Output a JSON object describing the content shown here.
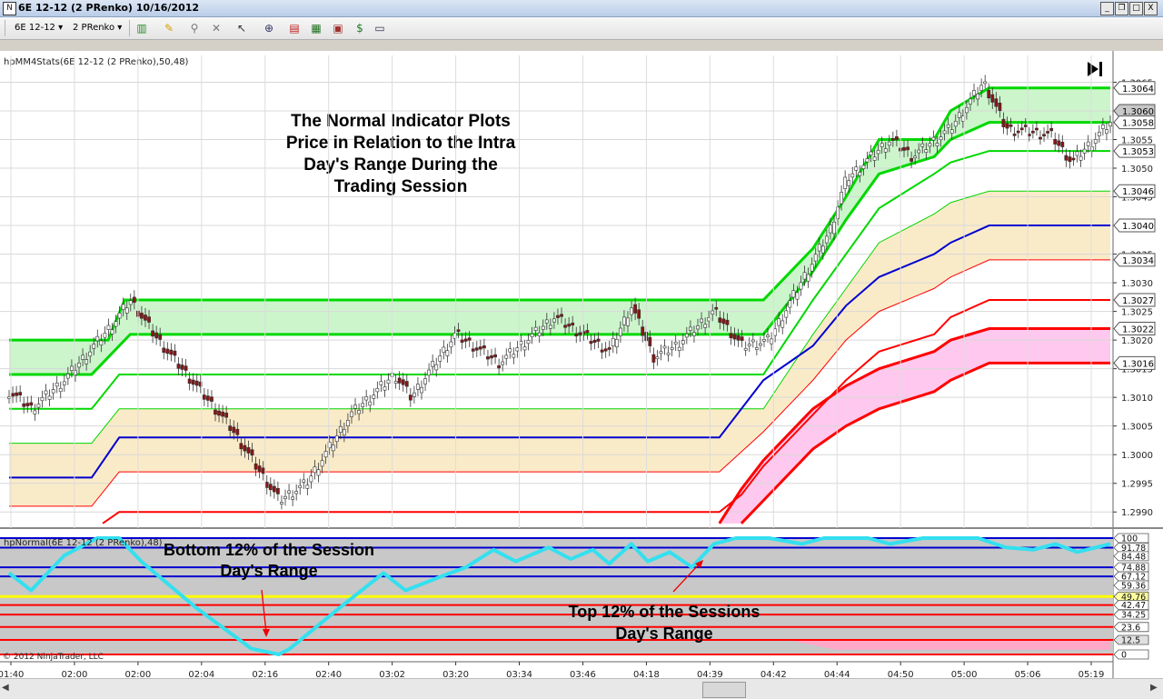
{
  "window": {
    "title": "6E 12-12 (2 PRenko)  10/16/2012",
    "min_label": "_",
    "restore_label": "❐",
    "max_label": "□",
    "close_label": "X"
  },
  "toolbar": {
    "instrument": "6E 12-12",
    "period": "2 PRenko",
    "icons": [
      "candlestick-icon",
      "pencil-icon",
      "pin-icon",
      "crosshair-icon",
      "pointer-icon",
      "zoom-icon",
      "chart-style-icon",
      "bars-icon",
      "panels-icon",
      "dollar-icon",
      "properties-icon"
    ]
  },
  "price_panel": {
    "indicator_label": "hpMM4Stats(6E 12-12 (2 PRenko),50,48)",
    "annotation_lines": [
      "The Normal Indicator Plots",
      "Price in Relation to the Intra",
      "Day's Range During the",
      "Trading Session"
    ],
    "nav_icon": "go-to-end-icon"
  },
  "normal_panel": {
    "indicator_label": "hpNormal(6E 12-12 (2 PRenko),48)",
    "annotation_bottom": [
      "Bottom 12% of the Session",
      "Day's Range"
    ],
    "annotation_top": [
      "Top 12% of the Sessions",
      "Day's Range"
    ],
    "copyright": "© 2012 NinjaTrader, LLC"
  },
  "colors": {
    "green": "#00d800",
    "blue": "#0000d0",
    "red": "#ff0000",
    "cyan": "#33e0f0",
    "yellow": "#ffff00",
    "green_fill": "#ccf5cc",
    "tan_fill": "#faebc8",
    "pink_fill": "#ffc8ee",
    "gray_fill": "#c8c8c8"
  },
  "chart_data": [
    {
      "type": "candlestick",
      "title": "",
      "x_ticks": [
        "01:40",
        "02:00",
        "02:00",
        "02:04",
        "02:16",
        "02:40",
        "03:02",
        "03:20",
        "03:34",
        "03:46",
        "04:18",
        "04:39",
        "04:42",
        "04:44",
        "04:50",
        "05:00",
        "05:06",
        "05:19"
      ],
      "y_ticks": [
        1.299,
        1.2995,
        1.3,
        1.3005,
        1.301,
        1.3015,
        1.302,
        1.3025,
        1.303,
        1.3035,
        1.304,
        1.3045,
        1.305,
        1.3055,
        1.306,
        1.3065
      ],
      "ylim": [
        1.29875,
        1.30665
      ],
      "price_labels": [
        {
          "value": 1.3064,
          "text": "1.3064",
          "style": "green"
        },
        {
          "value": 1.306,
          "text": "1.3060",
          "style": "gray"
        },
        {
          "value": 1.3058,
          "text": "1.3058",
          "style": "green"
        },
        {
          "value": 1.3053,
          "text": "1.3053",
          "style": "green"
        },
        {
          "value": 1.3046,
          "text": "1.3046",
          "style": "green"
        },
        {
          "value": 1.304,
          "text": "1.3040",
          "style": "blue"
        },
        {
          "value": 1.3034,
          "text": "1.3034",
          "style": "red"
        },
        {
          "value": 1.3027,
          "text": "1.3027",
          "style": "red"
        },
        {
          "value": 1.3022,
          "text": "1.3022",
          "style": "red"
        },
        {
          "value": 1.3016,
          "text": "1.3016",
          "style": "red"
        }
      ],
      "price_path": [
        [
          0,
          1.3011
        ],
        [
          0.02,
          1.3008
        ],
        [
          0.05,
          1.3013
        ],
        [
          0.095,
          1.3023
        ],
        [
          0.11,
          1.3027
        ],
        [
          0.135,
          1.302
        ],
        [
          0.2,
          1.3005
        ],
        [
          0.245,
          1.2992
        ],
        [
          0.27,
          1.2995
        ],
        [
          0.31,
          1.3007
        ],
        [
          0.35,
          1.3014
        ],
        [
          0.365,
          1.301
        ],
        [
          0.405,
          1.3021
        ],
        [
          0.445,
          1.3016
        ],
        [
          0.495,
          1.3024
        ],
        [
          0.545,
          1.3018
        ],
        [
          0.565,
          1.3026
        ],
        [
          0.585,
          1.3017
        ],
        [
          0.605,
          1.3019
        ],
        [
          0.64,
          1.3025
        ],
        [
          0.665,
          1.3019
        ],
        [
          0.69,
          1.302
        ],
        [
          0.745,
          1.3039
        ],
        [
          0.76,
          1.3048
        ],
        [
          0.8,
          1.3055
        ],
        [
          0.82,
          1.3052
        ],
        [
          0.855,
          1.3057
        ],
        [
          0.885,
          1.3065
        ],
        [
          0.905,
          1.3057
        ],
        [
          0.945,
          1.3056
        ],
        [
          0.965,
          1.3051
        ],
        [
          1.0,
          1.3058
        ]
      ],
      "series": [
        {
          "name": "",
          "color": "green",
          "width": 3,
          "values": [
            [
              0,
              1.302
            ],
            [
              0.09,
              1.302
            ],
            [
              0.105,
              1.3027
            ],
            [
              0.645,
              1.3027
            ],
            [
              0.685,
              1.3027
            ],
            [
              0.73,
              1.3036
            ],
            [
              0.76,
              1.3045
            ],
            [
              0.79,
              1.3055
            ],
            [
              0.84,
              1.3055
            ],
            [
              0.855,
              1.306
            ],
            [
              0.89,
              1.3064
            ],
            [
              1.0,
              1.3064
            ]
          ]
        },
        {
          "name": "",
          "color": "green",
          "width": 3,
          "values": [
            [
              0,
              1.3014
            ],
            [
              0.075,
              1.3014
            ],
            [
              0.11,
              1.3021
            ],
            [
              0.645,
              1.3021
            ],
            [
              0.685,
              1.3021
            ],
            [
              0.73,
              1.3032
            ],
            [
              0.76,
              1.3041
            ],
            [
              0.79,
              1.3049
            ],
            [
              0.84,
              1.3052
            ],
            [
              0.855,
              1.3055
            ],
            [
              0.89,
              1.3058
            ],
            [
              1.0,
              1.3058
            ]
          ]
        },
        {
          "name": "",
          "color": "green",
          "width": 2,
          "values": [
            [
              0,
              1.3008
            ],
            [
              0.075,
              1.3008
            ],
            [
              0.1,
              1.3014
            ],
            [
              0.645,
              1.3014
            ],
            [
              0.685,
              1.3014
            ],
            [
              0.73,
              1.3027
            ],
            [
              0.76,
              1.3035
            ],
            [
              0.79,
              1.3043
            ],
            [
              0.84,
              1.3049
            ],
            [
              0.855,
              1.3051
            ],
            [
              0.89,
              1.3053
            ],
            [
              1.0,
              1.3053
            ]
          ]
        },
        {
          "name": "",
          "color": "green",
          "width": 1,
          "values": [
            [
              0,
              1.3002
            ],
            [
              0.075,
              1.3002
            ],
            [
              0.1,
              1.3008
            ],
            [
              0.645,
              1.3008
            ],
            [
              0.685,
              1.3008
            ],
            [
              0.73,
              1.3021
            ],
            [
              0.76,
              1.3029
            ],
            [
              0.79,
              1.3037
            ],
            [
              0.84,
              1.3042
            ],
            [
              0.855,
              1.3044
            ],
            [
              0.89,
              1.3046
            ],
            [
              1.0,
              1.3046
            ]
          ]
        },
        {
          "name": "",
          "color": "blue",
          "width": 2,
          "values": [
            [
              0,
              1.2996
            ],
            [
              0.075,
              1.2996
            ],
            [
              0.1,
              1.3003
            ],
            [
              0.645,
              1.3003
            ],
            [
              0.685,
              1.3013
            ],
            [
              0.73,
              1.3019
            ],
            [
              0.76,
              1.3026
            ],
            [
              0.79,
              1.3031
            ],
            [
              0.84,
              1.3035
            ],
            [
              0.855,
              1.3037
            ],
            [
              0.89,
              1.304
            ],
            [
              1.0,
              1.304
            ]
          ]
        },
        {
          "name": "",
          "color": "red",
          "width": 1,
          "values": [
            [
              0,
              1.2991
            ],
            [
              0.075,
              1.2991
            ],
            [
              0.1,
              1.2997
            ],
            [
              0.645,
              1.2997
            ],
            [
              0.685,
              1.3004
            ],
            [
              0.73,
              1.3013
            ],
            [
              0.76,
              1.302
            ],
            [
              0.79,
              1.3025
            ],
            [
              0.84,
              1.3029
            ],
            [
              0.855,
              1.3031
            ],
            [
              0.89,
              1.3034
            ],
            [
              1.0,
              1.3034
            ]
          ]
        },
        {
          "name": "",
          "color": "red",
          "width": 2,
          "values": [
            [
              0.085,
              1.2988
            ],
            [
              0.1,
              1.299
            ],
            [
              0.645,
              1.299
            ],
            [
              0.665,
              1.2993
            ],
            [
              0.685,
              1.2998
            ],
            [
              0.73,
              1.3007
            ],
            [
              0.76,
              1.3013
            ],
            [
              0.79,
              1.3018
            ],
            [
              0.84,
              1.3021
            ],
            [
              0.855,
              1.3024
            ],
            [
              0.89,
              1.3027
            ],
            [
              1.0,
              1.3027
            ]
          ]
        },
        {
          "name": "",
          "color": "red",
          "width": 3,
          "values": [
            [
              0.645,
              1.2988
            ],
            [
              0.665,
              1.2994
            ],
            [
              0.685,
              1.2999
            ],
            [
              0.73,
              1.3008
            ],
            [
              0.76,
              1.3012
            ],
            [
              0.79,
              1.3015
            ],
            [
              0.84,
              1.3018
            ],
            [
              0.855,
              1.302
            ],
            [
              0.89,
              1.3022
            ],
            [
              1.0,
              1.3022
            ]
          ]
        },
        {
          "name": "",
          "color": "red",
          "width": 3,
          "values": [
            [
              0.665,
              1.2988
            ],
            [
              0.685,
              1.2992
            ],
            [
              0.73,
              1.3001
            ],
            [
              0.76,
              1.3005
            ],
            [
              0.79,
              1.3008
            ],
            [
              0.84,
              1.3011
            ],
            [
              0.855,
              1.3013
            ],
            [
              0.89,
              1.3016
            ],
            [
              1.0,
              1.3016
            ]
          ]
        }
      ]
    },
    {
      "type": "line",
      "title": "",
      "ylim": [
        0,
        100
      ],
      "y_ticks": [
        {
          "value": 100,
          "text": "100",
          "color": "blue"
        },
        {
          "value": 91.78,
          "text": "91.78",
          "color": "blue"
        },
        {
          "value": 84.48,
          "text": "84.48",
          "color": "cyan"
        },
        {
          "value": 74.88,
          "text": "74.88",
          "color": "blue"
        },
        {
          "value": 67.12,
          "text": "67.12",
          "color": "blue"
        },
        {
          "value": 59.36,
          "text": "59.36",
          "color": "red"
        },
        {
          "value": 49.76,
          "text": "49.76",
          "color": "yellow"
        },
        {
          "value": 42.47,
          "text": "42.47",
          "color": "red"
        },
        {
          "value": 34.25,
          "text": "34.25",
          "color": "red"
        },
        {
          "value": 23.6,
          "text": "23.6",
          "color": "red"
        },
        {
          "value": 12.5,
          "text": "12.5",
          "color": "gray"
        },
        {
          "value": 0,
          "text": "0",
          "color": "red"
        }
      ],
      "levels": [
        {
          "value": 100,
          "color": "blue"
        },
        {
          "value": 91.78,
          "color": "blue"
        },
        {
          "value": 74.88,
          "color": "blue"
        },
        {
          "value": 67.12,
          "color": "blue"
        },
        {
          "value": 49.76,
          "color": "yellow"
        },
        {
          "value": 42.47,
          "color": "red"
        },
        {
          "value": 34.25,
          "color": "red"
        },
        {
          "value": 23.6,
          "color": "red"
        },
        {
          "value": 12.5,
          "color": "red"
        },
        {
          "value": 0,
          "color": "red"
        }
      ],
      "series": [
        {
          "name": "",
          "color": "cyan",
          "values": [
            [
              0,
              70
            ],
            [
              0.02,
              55
            ],
            [
              0.05,
              85
            ],
            [
              0.08,
              100
            ],
            [
              0.1,
              100
            ],
            [
              0.12,
              80
            ],
            [
              0.17,
              40
            ],
            [
              0.22,
              5
            ],
            [
              0.245,
              0
            ],
            [
              0.255,
              5
            ],
            [
              0.3,
              40
            ],
            [
              0.34,
              70
            ],
            [
              0.36,
              55
            ],
            [
              0.395,
              68
            ],
            [
              0.415,
              75
            ],
            [
              0.44,
              90
            ],
            [
              0.46,
              80
            ],
            [
              0.49,
              92
            ],
            [
              0.51,
              82
            ],
            [
              0.53,
              90
            ],
            [
              0.545,
              78
            ],
            [
              0.565,
              95
            ],
            [
              0.58,
              80
            ],
            [
              0.6,
              88
            ],
            [
              0.62,
              75
            ],
            [
              0.64,
              95
            ],
            [
              0.66,
              100
            ],
            [
              0.69,
              100
            ],
            [
              0.72,
              95
            ],
            [
              0.74,
              100
            ],
            [
              0.78,
              100
            ],
            [
              0.8,
              95
            ],
            [
              0.83,
              100
            ],
            [
              0.86,
              100
            ],
            [
              0.88,
              100
            ],
            [
              0.905,
              92
            ],
            [
              0.93,
              90
            ],
            [
              0.95,
              95
            ],
            [
              0.97,
              88
            ],
            [
              1.0,
              95
            ]
          ]
        }
      ]
    }
  ]
}
